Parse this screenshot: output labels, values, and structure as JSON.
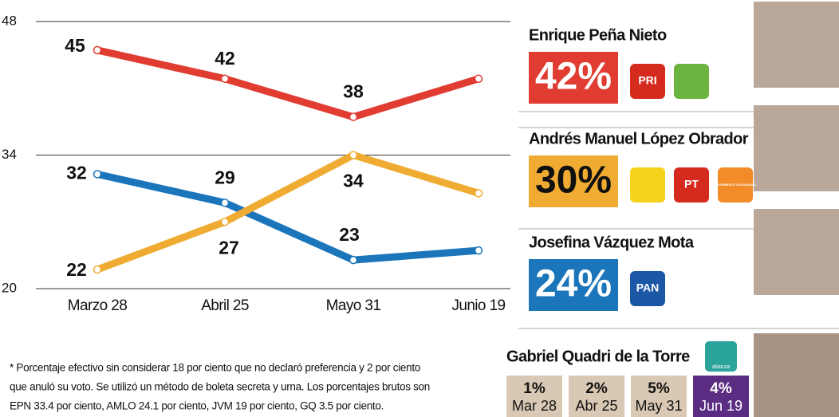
{
  "chart_data": {
    "type": "line",
    "categories": [
      "Marzo 28",
      "Abril 25",
      "Mayo 31",
      "Junio 19"
    ],
    "series": [
      {
        "color": "#e03c31",
        "values": [
          45,
          42,
          38,
          42
        ],
        "value_labels": [
          "45",
          "42",
          "38",
          null
        ]
      },
      {
        "color": "#1b75bb",
        "values": [
          32,
          29,
          23,
          24
        ],
        "value_labels": [
          "32",
          "29",
          "23",
          null
        ]
      },
      {
        "color": "#f0ac32",
        "values": [
          22,
          27,
          34,
          30
        ],
        "value_labels": [
          "22",
          "27",
          "34",
          null
        ]
      }
    ],
    "ylim": [
      20,
      48
    ],
    "yticks": [
      20,
      34,
      48
    ],
    "grid": true
  },
  "candidates": [
    {
      "name": "Enrique Peña Nieto",
      "share": "42%",
      "color": "#e03c31",
      "text_color": "#ffffff",
      "logos": [
        {
          "color": "#d52b1e",
          "text": "PRI"
        },
        {
          "color": "#6cb33f"
        }
      ]
    },
    {
      "name": "Andrés Manuel López Obrador",
      "share": "30%",
      "color": "#f0ac32",
      "text_color": "#111111",
      "logos": [
        {
          "color": "#f5d21b"
        },
        {
          "color": "#d52b1e",
          "text": "PT"
        },
        {
          "color": "#f28c28",
          "text": "MOVIMIENTO CIUDADANO"
        }
      ]
    },
    {
      "name": "Josefina Vázquez Mota",
      "share": "24%",
      "color": "#1b75bb",
      "text_color": "#ffffff",
      "logos": [
        {
          "color": "#1c57a5",
          "text": "PAN"
        }
      ]
    }
  ],
  "quadri": {
    "name": "Gabriel Quadri de la Torre",
    "logo": "alianza",
    "polls": [
      {
        "share": "1%",
        "date": "Mar 28"
      },
      {
        "share": "2%",
        "date": "Abr 25"
      },
      {
        "share": "5%",
        "date": "May 31"
      },
      {
        "share": "4%",
        "date": "Jun 19"
      }
    ]
  },
  "footnote": [
    "* Porcentaje efectivo sin considerar 18 por ciento que no declaró preferencia y 2 por ciento",
    "que anuló su voto. Se utilizó un método de boleta secreta y urna. Los porcentajes brutos son",
    "EPN 33.4 por ciento, AMLO 24.1 por ciento, JVM 19 por ciento, GQ 3.5 por ciento."
  ]
}
